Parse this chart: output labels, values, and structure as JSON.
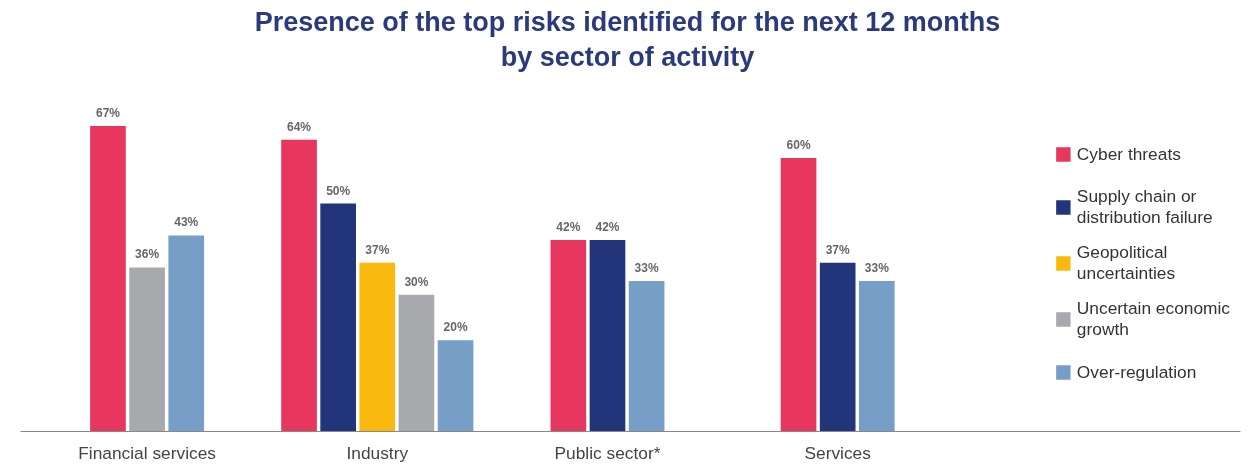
{
  "chart_data": {
    "type": "bar",
    "title": "Presence of the top risks identified for the next 12 months\nby sector of activity",
    "categories": [
      "Financial services",
      "Industry",
      "Public sector*",
      "Services"
    ],
    "grid": false,
    "legend": "right",
    "series": [
      {
        "name": "Cyber threats",
        "color": "#e8375f",
        "values": [
          67,
          64,
          42,
          60
        ],
        "value_labels": [
          "67%",
          "64%",
          "42%",
          "60%"
        ]
      },
      {
        "name": "Supply chain or distribution failure",
        "color": "#22347a",
        "values": [
          null,
          50,
          42,
          37
        ],
        "value_labels": [
          null,
          "50%",
          "42%",
          "37%"
        ]
      },
      {
        "name": "Geopolitical uncertainties",
        "color": "#f9b90f",
        "values": [
          null,
          37,
          null,
          null
        ],
        "value_labels": [
          null,
          "37%",
          null,
          null
        ]
      },
      {
        "name": "Uncertain economic growth",
        "color": "#a7a9ac",
        "values": [
          36,
          30,
          null,
          null
        ],
        "value_labels": [
          "36%",
          "30%",
          null,
          null
        ]
      },
      {
        "name": "Over-regulation",
        "color": "#779ec6",
        "values": [
          43,
          20,
          33,
          33
        ],
        "value_labels": [
          "43%",
          "20%",
          "33%",
          "33%"
        ]
      }
    ]
  }
}
